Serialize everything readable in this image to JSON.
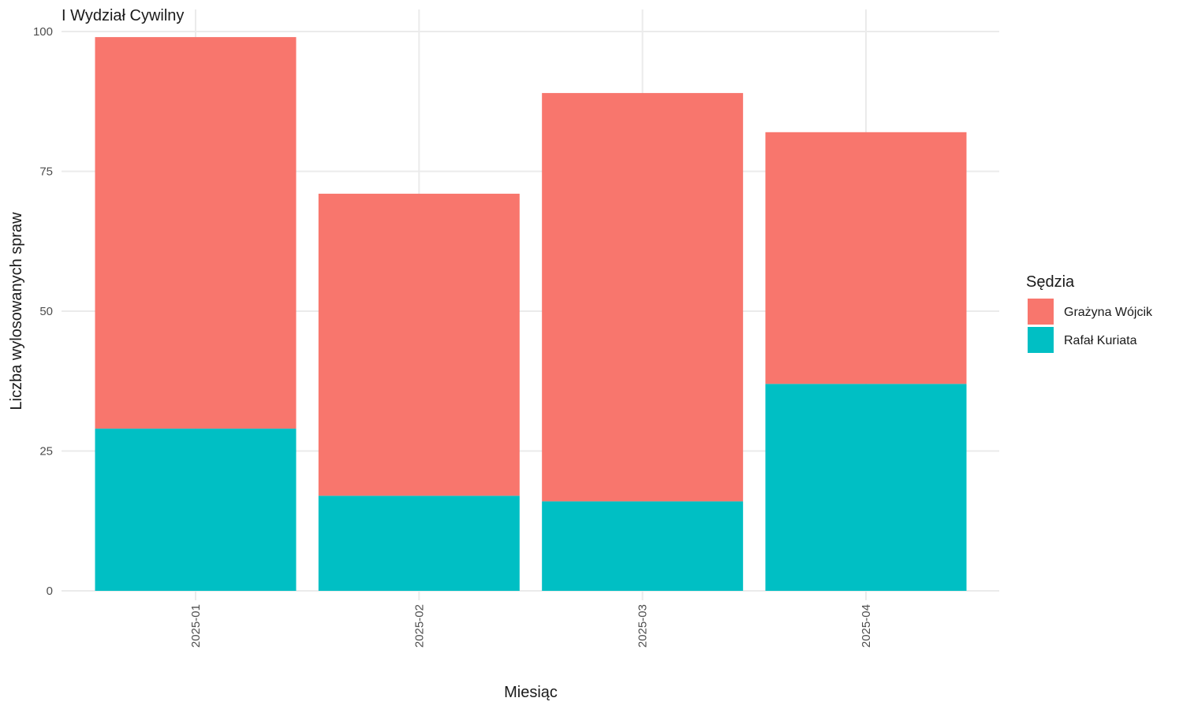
{
  "chart_data": {
    "type": "bar",
    "stacked": true,
    "title": "I Wydział Cywilny",
    "xlabel": "Miesiąc",
    "ylabel": "Liczba wylosowanych spraw",
    "categories": [
      "2025-01",
      "2025-02",
      "2025-03",
      "2025-04"
    ],
    "series": [
      {
        "name": "Rafał Kuriata",
        "color": "#00BFC4",
        "values": [
          29,
          17,
          16,
          37
        ]
      },
      {
        "name": "Grażyna Wójcik",
        "color": "#F8766D",
        "values": [
          70,
          54,
          73,
          45
        ]
      }
    ],
    "ylim": [
      0,
      100
    ],
    "yticks": [
      0,
      25,
      50,
      75,
      100
    ],
    "grid": true,
    "legend": {
      "title": "Sędzia",
      "position": "right",
      "order": [
        "Grażyna Wójcik",
        "Rafał Kuriata"
      ]
    }
  }
}
